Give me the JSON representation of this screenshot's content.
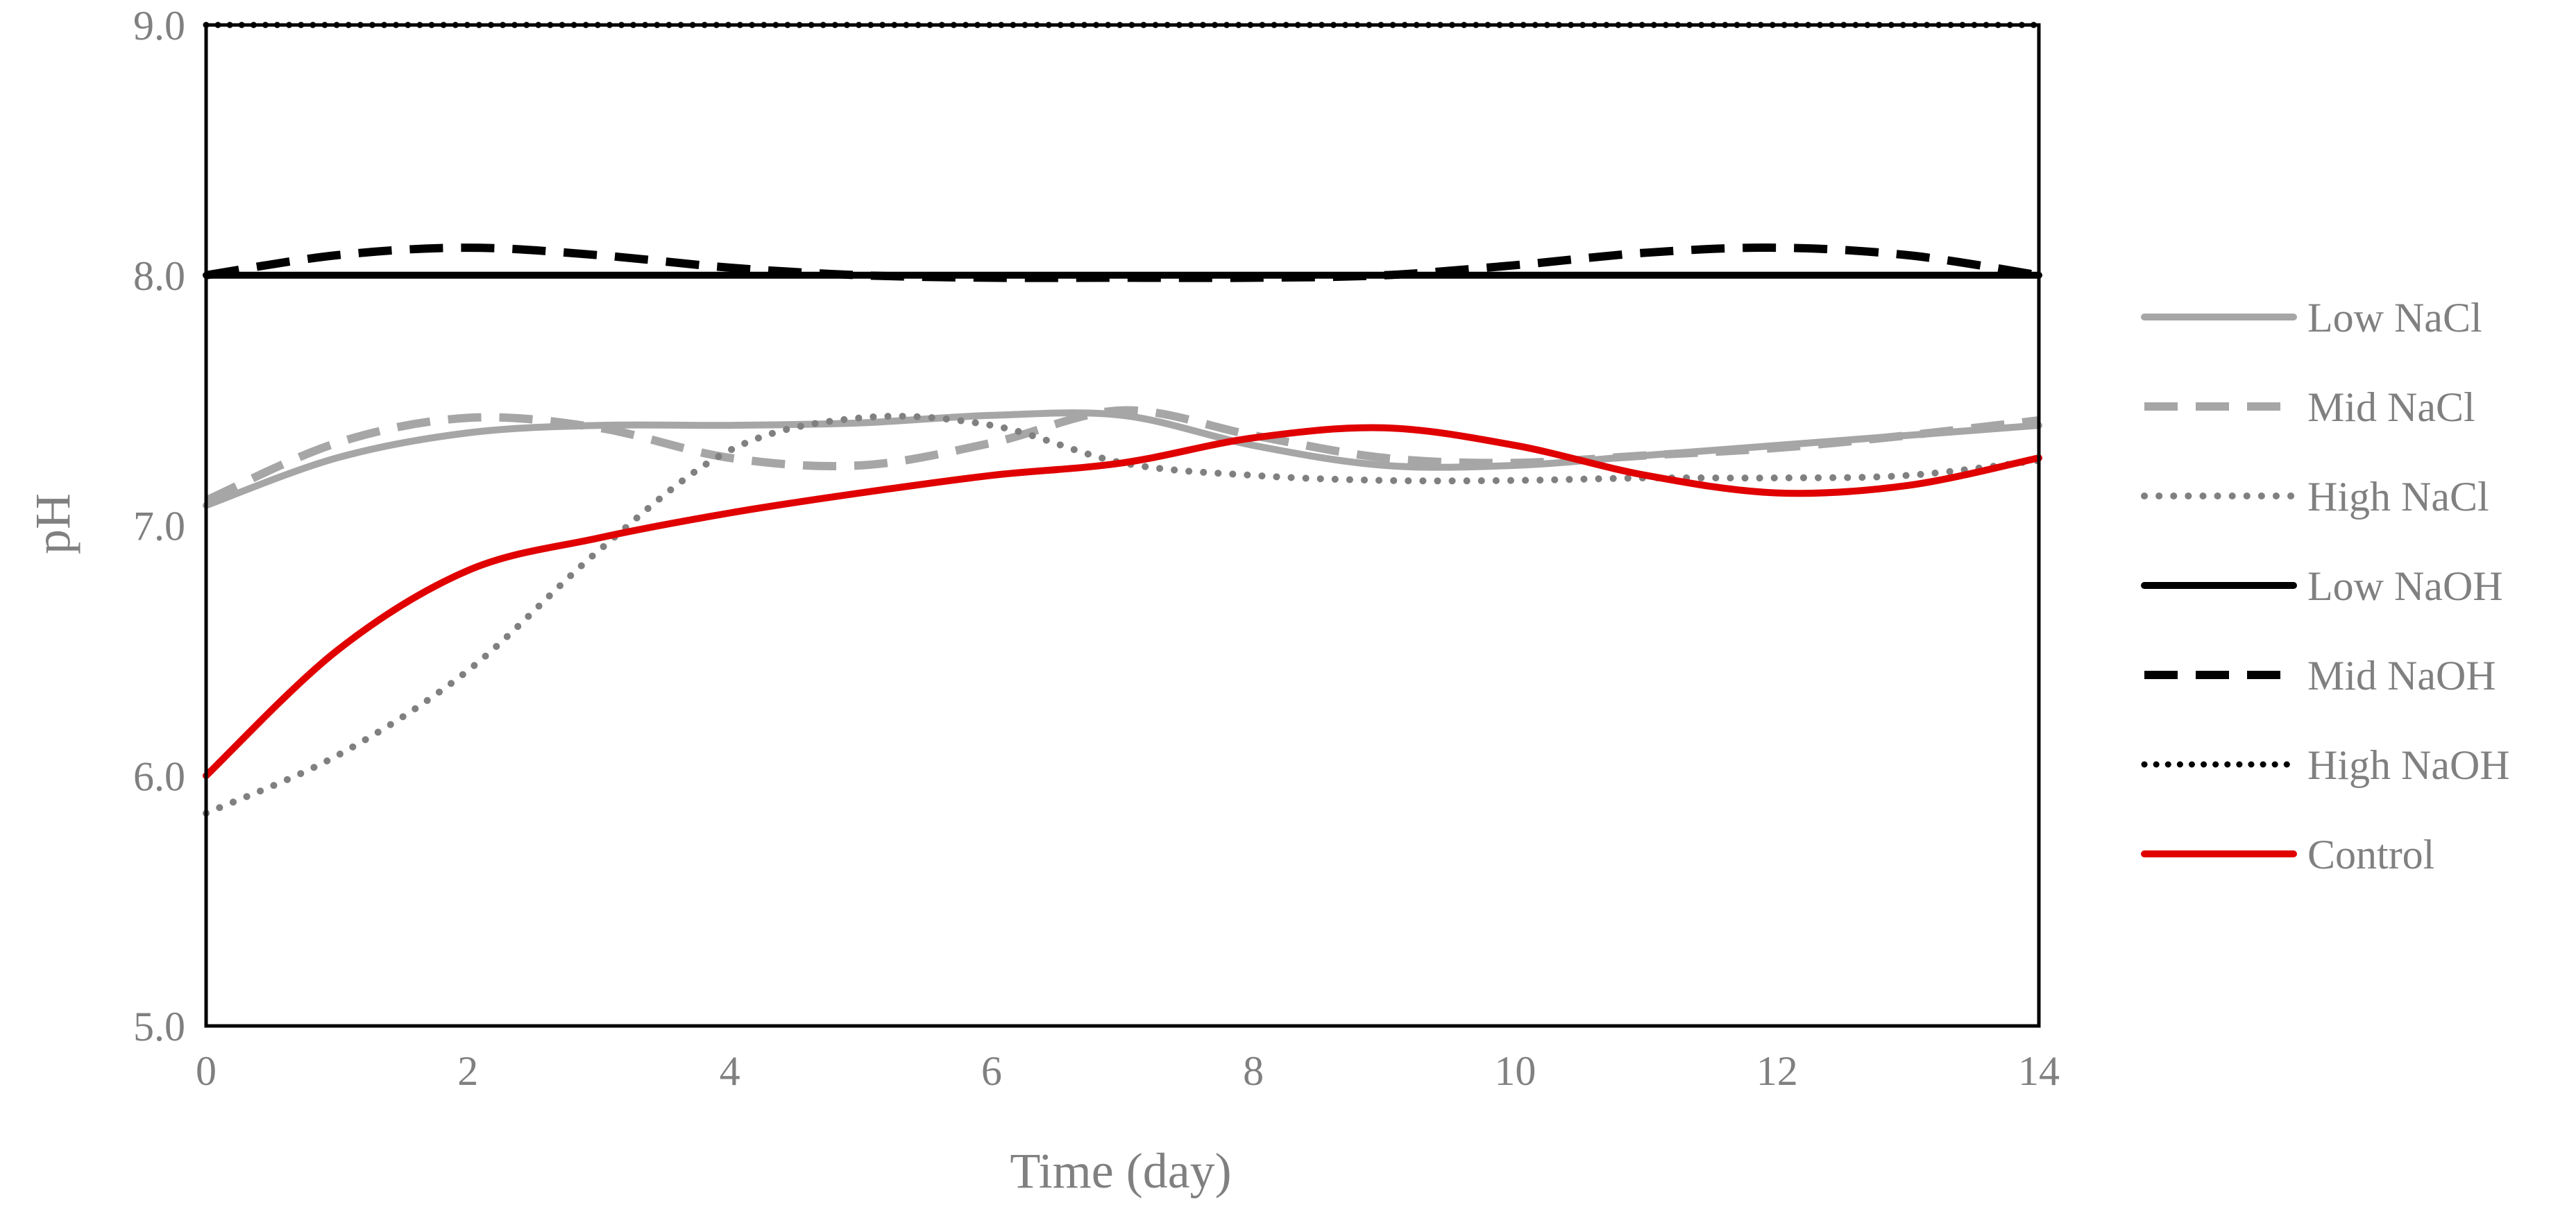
{
  "chart_data": {
    "type": "line",
    "title": "",
    "xlabel": "Time (day)",
    "ylabel": "pH",
    "xlim": [
      0,
      14
    ],
    "ylim": [
      5.0,
      9.0
    ],
    "x_ticks": [
      "0",
      "2",
      "4",
      "6",
      "8",
      "10",
      "12",
      "14"
    ],
    "y_ticks": [
      "5.0",
      "6.0",
      "7.0",
      "8.0",
      "9.0"
    ],
    "grid": false,
    "legend_position": "right",
    "series": [
      {
        "name": "Low NaCl",
        "color": "#a6a6a6",
        "style": "solid",
        "x": [
          0,
          1,
          2,
          3,
          4,
          5,
          6,
          7,
          8,
          9,
          10,
          11,
          12,
          13,
          14
        ],
        "y": [
          7.08,
          7.27,
          7.37,
          7.4,
          7.4,
          7.41,
          7.44,
          7.44,
          7.32,
          7.24,
          7.24,
          7.28,
          7.32,
          7.36,
          7.4
        ]
      },
      {
        "name": "Mid NaCl",
        "color": "#a6a6a6",
        "style": "dash",
        "x": [
          0,
          1,
          2,
          3,
          4,
          5,
          6,
          7,
          8,
          9,
          10,
          11,
          12,
          13,
          14
        ],
        "y": [
          7.1,
          7.33,
          7.43,
          7.39,
          7.27,
          7.24,
          7.33,
          7.46,
          7.36,
          7.27,
          7.25,
          7.28,
          7.31,
          7.36,
          7.42
        ]
      },
      {
        "name": "High NaCl",
        "color": "#808080",
        "style": "dot",
        "x": [
          0,
          1,
          2,
          3,
          4,
          5,
          6,
          7,
          8,
          9,
          10,
          11,
          12,
          13,
          14
        ],
        "y": [
          5.85,
          6.08,
          6.42,
          6.9,
          7.3,
          7.43,
          7.4,
          7.25,
          7.2,
          7.18,
          7.18,
          7.19,
          7.19,
          7.2,
          7.26
        ]
      },
      {
        "name": "Low NaOH",
        "color": "#000000",
        "style": "solid",
        "x": [
          0,
          2,
          4,
          6,
          8,
          10,
          12,
          14
        ],
        "y": [
          8.0,
          8.0,
          8.0,
          8.0,
          8.0,
          8.0,
          8.0,
          8.0
        ]
      },
      {
        "name": "Mid NaOH",
        "color": "#000000",
        "style": "dash",
        "x": [
          0,
          1,
          2,
          3,
          4,
          5,
          6,
          7,
          8,
          9,
          10,
          11,
          12,
          13,
          14
        ],
        "y": [
          8.0,
          8.08,
          8.11,
          8.08,
          8.03,
          8.0,
          7.99,
          7.99,
          7.99,
          8.0,
          8.04,
          8.09,
          8.11,
          8.08,
          8.0
        ]
      },
      {
        "name": "High NaOH",
        "color": "#000000",
        "style": "densedot",
        "x": [
          0,
          2,
          4,
          6,
          8,
          10,
          12,
          14
        ],
        "y": [
          9.0,
          9.0,
          9.0,
          9.0,
          9.0,
          9.0,
          9.0,
          9.0
        ]
      },
      {
        "name": "Control",
        "color": "#e00000",
        "style": "solid",
        "x": [
          0,
          1,
          2,
          3,
          4,
          5,
          6,
          7,
          8,
          9,
          10,
          11,
          12,
          13,
          14
        ],
        "y": [
          6.0,
          6.5,
          6.82,
          6.95,
          7.05,
          7.13,
          7.2,
          7.25,
          7.35,
          7.39,
          7.32,
          7.2,
          7.13,
          7.16,
          7.27
        ]
      }
    ]
  }
}
